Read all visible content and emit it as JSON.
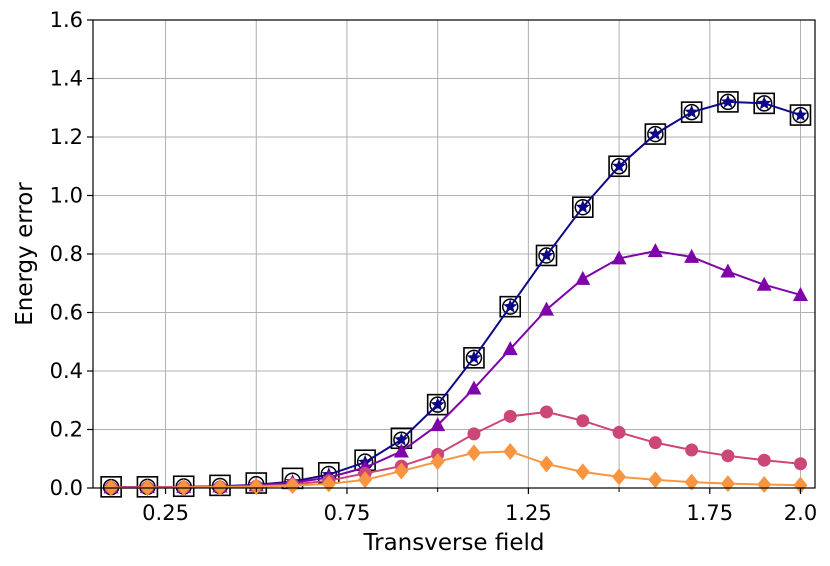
{
  "chart_data": {
    "type": "line",
    "title": "",
    "xlabel": "Transverse field",
    "ylabel": "Energy error",
    "xlim": [
      0.05,
      2.04
    ],
    "ylim": [
      0.0,
      1.6
    ],
    "xticks": [
      0.25,
      0.75,
      1.25,
      1.75,
      2.0
    ],
    "xtick_labels": [
      "0.25",
      "0.75",
      "1.25",
      "1.75",
      "2.0"
    ],
    "xminor": [
      0.5,
      1.0,
      1.5
    ],
    "xgrid": [
      0.25,
      0.5,
      0.75,
      1.0,
      1.25,
      1.5,
      1.75,
      2.0
    ],
    "yticks": [
      0.0,
      0.2,
      0.4,
      0.6,
      0.8,
      1.0,
      1.2,
      1.4,
      1.6
    ],
    "ytick_labels": [
      "0.0",
      "0.2",
      "0.4",
      "0.6",
      "0.8",
      "1.0",
      "1.2",
      "1.4",
      "1.6"
    ],
    "grid": true,
    "legend": "none",
    "x": [
      0.1,
      0.2,
      0.3,
      0.4,
      0.5,
      0.6,
      0.7,
      0.8,
      0.9,
      1.0,
      1.1,
      1.2,
      1.3,
      1.4,
      1.5,
      1.6,
      1.7,
      1.8,
      1.9,
      2.0
    ],
    "series": [
      {
        "marker": "square-open",
        "color": "#000000",
        "line": false,
        "values": [
          0.004,
          0.004,
          0.006,
          0.009,
          0.017,
          0.033,
          0.052,
          0.095,
          0.17,
          0.285,
          0.445,
          0.62,
          0.795,
          0.96,
          1.1,
          1.21,
          1.285,
          1.32,
          1.315,
          1.275
        ]
      },
      {
        "marker": "circle-open",
        "color": "#000000",
        "line": false,
        "values": [
          0.003,
          0.004,
          0.005,
          0.007,
          0.013,
          0.025,
          0.048,
          0.09,
          0.165,
          0.285,
          0.445,
          0.62,
          0.795,
          0.96,
          1.1,
          1.21,
          1.285,
          1.32,
          1.315,
          1.275
        ]
      },
      {
        "marker": "star",
        "color": "#0d0887",
        "line": true,
        "values": [
          0.003,
          0.003,
          0.004,
          0.006,
          0.011,
          0.022,
          0.046,
          0.088,
          0.165,
          0.285,
          0.445,
          0.62,
          0.795,
          0.96,
          1.1,
          1.21,
          1.285,
          1.32,
          1.315,
          1.275
        ]
      },
      {
        "marker": "triangle",
        "color": "#7e03a8",
        "line": true,
        "values": [
          0.002,
          0.003,
          0.004,
          0.005,
          0.009,
          0.018,
          0.036,
          0.07,
          0.125,
          0.215,
          0.34,
          0.475,
          0.61,
          0.715,
          0.785,
          0.81,
          0.79,
          0.74,
          0.695,
          0.66
        ]
      },
      {
        "marker": "circle",
        "color": "#cc4778",
        "line": true,
        "values": [
          0.002,
          0.002,
          0.003,
          0.004,
          0.006,
          0.012,
          0.025,
          0.05,
          0.075,
          0.115,
          0.185,
          0.245,
          0.26,
          0.23,
          0.19,
          0.155,
          0.13,
          0.11,
          0.095,
          0.083
        ]
      },
      {
        "marker": "diamond",
        "color": "#f89540",
        "line": true,
        "values": [
          0.001,
          0.001,
          0.002,
          0.003,
          0.005,
          0.008,
          0.014,
          0.028,
          0.058,
          0.09,
          0.12,
          0.125,
          0.082,
          0.055,
          0.038,
          0.028,
          0.02,
          0.015,
          0.012,
          0.01
        ]
      }
    ]
  }
}
